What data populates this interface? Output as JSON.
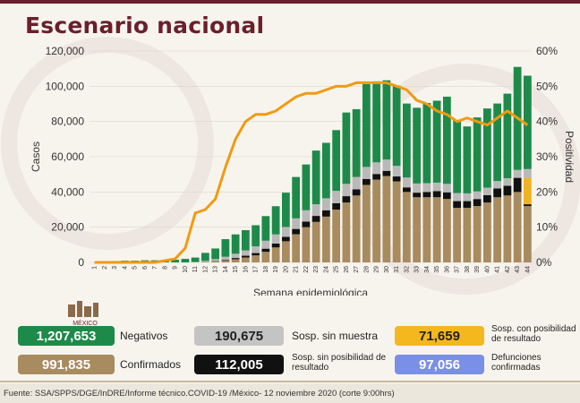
{
  "page": {
    "title": "Escenario nacional"
  },
  "chart_data": {
    "type": "bar",
    "stacked": true,
    "x": [
      1,
      2,
      3,
      4,
      5,
      6,
      7,
      8,
      9,
      10,
      11,
      12,
      13,
      14,
      15,
      16,
      17,
      18,
      19,
      20,
      21,
      22,
      23,
      24,
      25,
      26,
      27,
      28,
      29,
      30,
      31,
      32,
      33,
      34,
      35,
      36,
      37,
      38,
      39,
      40,
      41,
      42,
      43,
      44
    ],
    "xlabel": "Semana epidemiológica",
    "ylabel": "Casos",
    "y2label": "Positividad",
    "ylim": [
      0,
      120000
    ],
    "y2lim": [
      0,
      60
    ],
    "yticks": [
      "0",
      "20,000",
      "40,000",
      "60,000",
      "80,000",
      "100,000",
      "120,000"
    ],
    "y2ticks": [
      "0%",
      "10%",
      "20%",
      "30%",
      "40%",
      "50%",
      "60%"
    ],
    "series": [
      {
        "key": "confirmados",
        "color": "#a88b5f",
        "values": [
          0,
          0,
          0,
          0,
          0,
          0,
          0,
          0,
          0,
          0,
          50,
          200,
          500,
          1000,
          1800,
          2800,
          4000,
          6000,
          8500,
          12000,
          16000,
          20000,
          23000,
          26000,
          30000,
          34000,
          38000,
          44000,
          47000,
          49000,
          46000,
          40000,
          37000,
          37000,
          37000,
          36000,
          31000,
          31000,
          32000,
          34000,
          37000,
          38000,
          40000,
          32000
        ]
      },
      {
        "key": "defunciones_sin_posibilidad",
        "color": "#111111",
        "values": [
          0,
          0,
          0,
          0,
          0,
          0,
          0,
          0,
          0,
          0,
          0,
          100,
          200,
          400,
          700,
          1000,
          1300,
          1800,
          2200,
          2500,
          3000,
          3200,
          3400,
          3600,
          3600,
          3600,
          3500,
          3400,
          3200,
          3000,
          2800,
          2600,
          2600,
          3000,
          3500,
          3800,
          3800,
          3800,
          4000,
          4200,
          5000,
          5500,
          8000,
          1000
        ]
      },
      {
        "key": "posibilidad_resultado",
        "color": "#f0b323",
        "values": [
          0,
          0,
          0,
          0,
          0,
          0,
          0,
          0,
          0,
          0,
          0,
          0,
          0,
          0,
          0,
          0,
          0,
          0,
          0,
          0,
          0,
          0,
          0,
          0,
          0,
          0,
          0,
          0,
          0,
          0,
          0,
          0,
          0,
          0,
          0,
          0,
          0,
          0,
          0,
          0,
          0,
          0,
          0,
          15000
        ]
      },
      {
        "key": "sosp_sin_muestra",
        "color": "#b9b9b9",
        "values": [
          0,
          0,
          0,
          0,
          0,
          0,
          0,
          0,
          0,
          0,
          200,
          600,
          1200,
          1800,
          2400,
          3000,
          3800,
          4500,
          5200,
          5600,
          6000,
          6400,
          6600,
          6800,
          7000,
          7000,
          7000,
          6800,
          6600,
          6400,
          6000,
          5600,
          5200,
          5000,
          4800,
          4800,
          4600,
          4400,
          4300,
          4200,
          4200,
          4300,
          4500,
          5000
        ]
      },
      {
        "key": "negativos",
        "color": "#1e8a4a",
        "values": [
          0,
          500,
          800,
          1000,
          1000,
          1200,
          1200,
          1000,
          1500,
          2000,
          2500,
          4500,
          6000,
          10000,
          11000,
          11500,
          12000,
          14000,
          16000,
          19500,
          23500,
          26000,
          30500,
          31500,
          34500,
          40500,
          38500,
          47000,
          46000,
          45000,
          45500,
          42000,
          43000,
          45500,
          46500,
          49500,
          41500,
          38000,
          42000,
          45000,
          44000,
          48000,
          58500,
          53000
        ]
      }
    ],
    "positividad": [
      0,
      0,
      0,
      0,
      0,
      0,
      0,
      0.5,
      1,
      4,
      14,
      15,
      18,
      27,
      35,
      40,
      42,
      42,
      43,
      45,
      47,
      48,
      48,
      49,
      50,
      50,
      51,
      51,
      51,
      51,
      50,
      49,
      46,
      45,
      43,
      42,
      40,
      41,
      40,
      39,
      41,
      43,
      41,
      39
    ]
  },
  "legend": [
    {
      "key": "negativos",
      "value": "1,207,653",
      "label": "Negativos",
      "color": "#1e8a4a"
    },
    {
      "key": "sosp_sin_muestra",
      "value": "190,675",
      "label": "Sosp. sin muestra",
      "color": "#c4c4c4"
    },
    {
      "key": "sosp_con_posibilidad",
      "value": "71,659",
      "label": "Sosp. con posibilidad de resultado",
      "color": "#f4b81e"
    },
    {
      "key": "confirmados",
      "value": "991,835",
      "label": "Confirmados",
      "color": "#a88b5f"
    },
    {
      "key": "sosp_sin_posibilidad",
      "value": "112,005",
      "label": "Sosp. sin posibilidad de resultado",
      "color": "#111111"
    },
    {
      "key": "defunciones",
      "value": "97,056",
      "label": "Defunciones confirmadas",
      "color": "#7a8fe6"
    }
  ],
  "logo": {
    "label": "MÉXICO"
  },
  "footer": {
    "text": "Fuente: SSA/SPPS/DGE/InDRE/Informe técnico.COVID-19 /México- 12 noviembre 2020 (corte 9:00hrs)"
  }
}
